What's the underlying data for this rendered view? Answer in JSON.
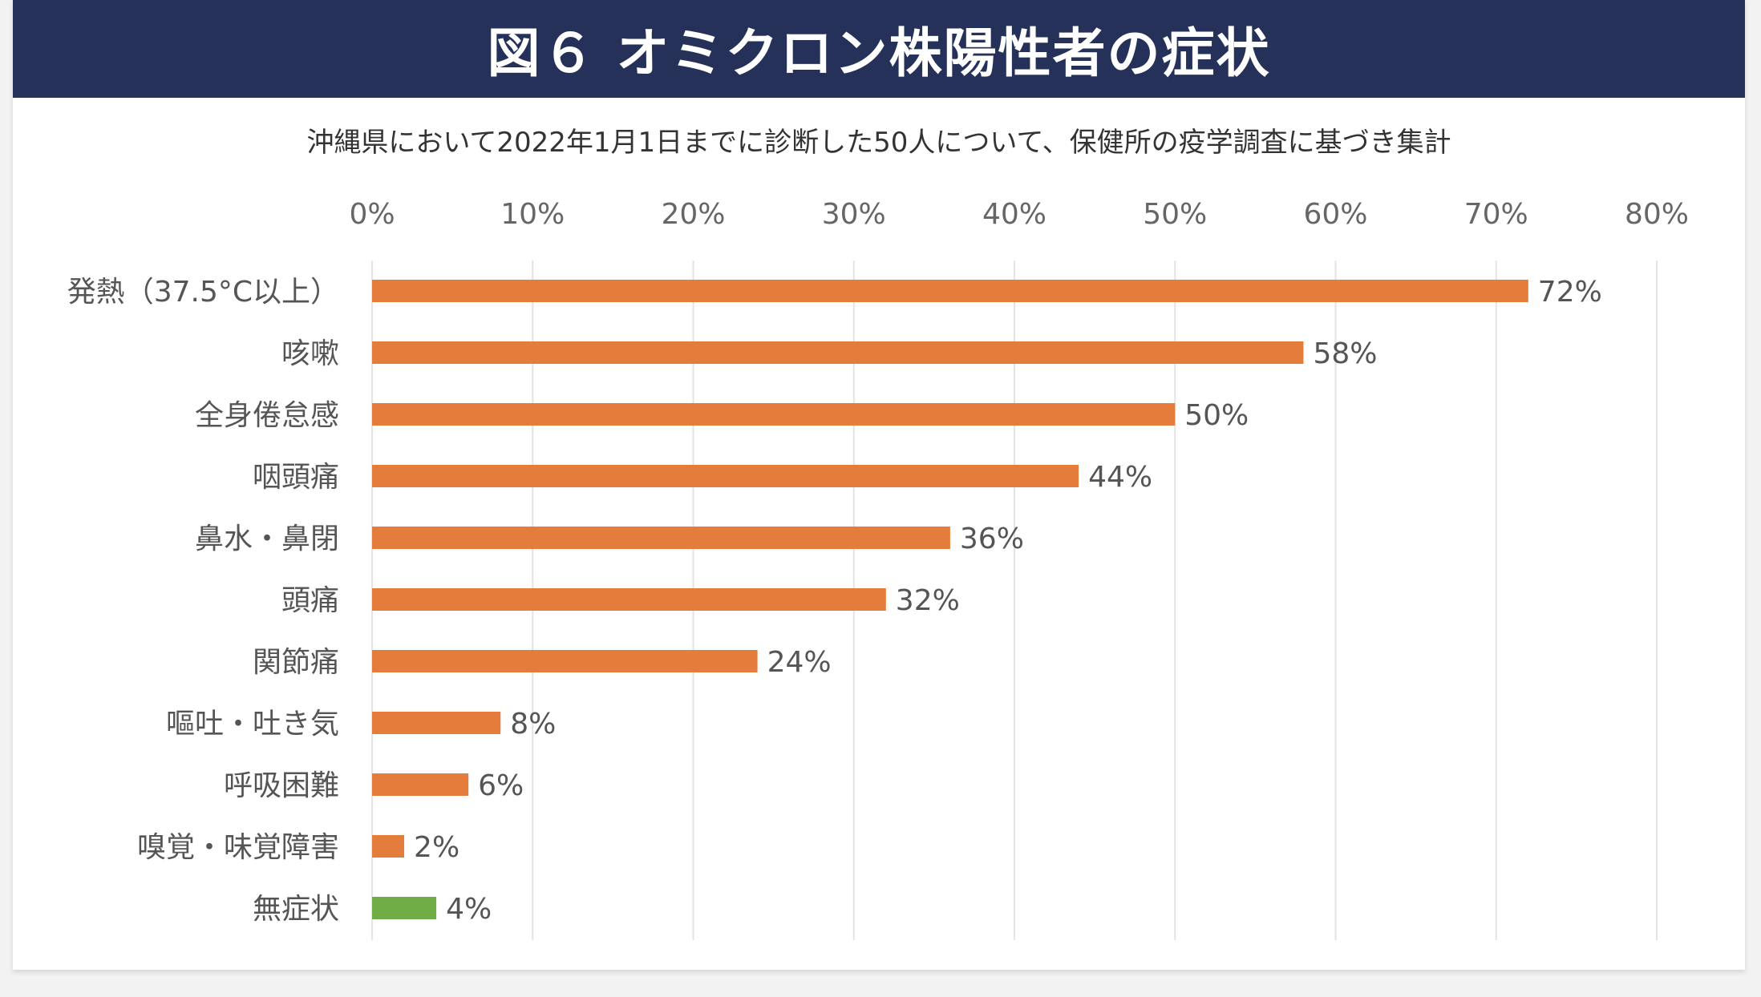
{
  "title": "図６ オミクロン株陽性者の症状",
  "subtitle": "沖縄県において2022年1月1日までに診断した50人について、保健所の疫学調査に基づき集計",
  "chart_data": {
    "type": "bar",
    "orientation": "horizontal",
    "title": "図６ オミクロン株陽性者の症状",
    "subtitle": "沖縄県において2022年1月1日までに診断した50人について、保健所の疫学調査に基づき集計",
    "xlim": [
      0,
      80
    ],
    "x_ticks": [
      "0%",
      "10%",
      "20%",
      "30%",
      "40%",
      "50%",
      "60%",
      "70%",
      "80%"
    ],
    "x_axis_position": "top",
    "grid": true,
    "categories": [
      "発熱（37.5°C以上）",
      "咳嗽",
      "全身倦怠感",
      "咽頭痛",
      "鼻水・鼻閉",
      "頭痛",
      "関節痛",
      "嘔吐・吐き気",
      "呼吸困難",
      "嗅覚・味覚障害",
      "無症状"
    ],
    "values": [
      72,
      58,
      50,
      44,
      36,
      32,
      24,
      8,
      6,
      2,
      4
    ],
    "data_labels": [
      "72%",
      "58%",
      "50%",
      "44%",
      "36%",
      "32%",
      "24%",
      "8%",
      "6%",
      "2%",
      "4%"
    ],
    "colors": [
      "#E47C3C",
      "#E47C3C",
      "#E47C3C",
      "#E47C3C",
      "#E47C3C",
      "#E47C3C",
      "#E47C3C",
      "#E47C3C",
      "#E47C3C",
      "#E47C3C",
      "#70AD47"
    ]
  },
  "colors": {
    "header_bg": "#263159",
    "bar": "#E47C3C",
    "asymptomatic_bar": "#70AD47"
  }
}
